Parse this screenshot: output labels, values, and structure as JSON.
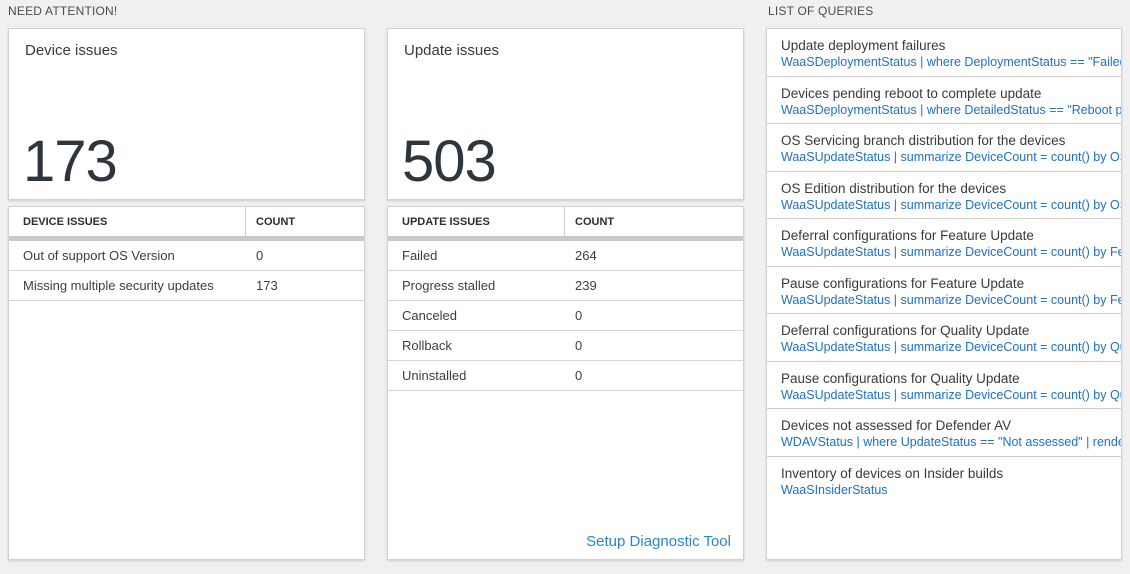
{
  "colors": {
    "page_background": "#f0f0f0",
    "accent_blue": "#1d70c8",
    "link_blue": "#2b84d1",
    "big_number": "#2e353c",
    "thick_bar": "#c8c8c8"
  },
  "need_attention": {
    "header": "NEED ATTENTION!",
    "device_card": {
      "title": "Device issues",
      "count": "173"
    },
    "device_table": {
      "columns": [
        "DEVICE ISSUES",
        "COUNT"
      ],
      "rows": [
        {
          "label": "Out of support OS Version",
          "count": "0"
        },
        {
          "label": "Missing multiple security updates",
          "count": "173"
        }
      ]
    },
    "update_card": {
      "title": "Update issues",
      "count": "503"
    },
    "update_table": {
      "columns": [
        "UPDATE ISSUES",
        "COUNT"
      ],
      "rows": [
        {
          "label": "Failed",
          "count": "264"
        },
        {
          "label": "Progress stalled",
          "count": "239"
        },
        {
          "label": "Canceled",
          "count": "0"
        },
        {
          "label": "Rollback",
          "count": "0"
        },
        {
          "label": "Uninstalled",
          "count": "0"
        }
      ],
      "link": "Setup Diagnostic Tool"
    }
  },
  "queries": {
    "header": "LIST OF QUERIES",
    "items": [
      {
        "title": "Update deployment failures",
        "query": "WaaSDeploymentStatus | where DeploymentStatus == \"Failed\" |..."
      },
      {
        "title": "Devices pending reboot to complete update",
        "query": "WaaSDeploymentStatus | where DetailedStatus == \"Reboot pend..."
      },
      {
        "title": "OS Servicing branch distribution for the devices",
        "query": "WaaSUpdateStatus | summarize DeviceCount = count() by OSSer..."
      },
      {
        "title": "OS Edition distribution for the devices",
        "query": "WaaSUpdateStatus | summarize DeviceCount = count() by OSEdit..."
      },
      {
        "title": "Deferral configurations for Feature Update",
        "query": "WaaSUpdateStatus | summarize DeviceCount = count() by Featur..."
      },
      {
        "title": "Pause configurations for Feature Update",
        "query": "WaaSUpdateStatus | summarize DeviceCount = count() by Featur..."
      },
      {
        "title": "Deferral configurations for Quality Update",
        "query": "WaaSUpdateStatus | summarize DeviceCount = count() by Qualit..."
      },
      {
        "title": "Pause configurations for Quality Update",
        "query": "WaaSUpdateStatus | summarize DeviceCount = count() by Qualit..."
      },
      {
        "title": "Devices not assessed for Defender AV",
        "query": "WDAVStatus | where UpdateStatus == \"Not assessed\" | render ta..."
      },
      {
        "title": "Inventory of devices on Insider builds",
        "query": "WaaSInsiderStatus"
      }
    ]
  }
}
